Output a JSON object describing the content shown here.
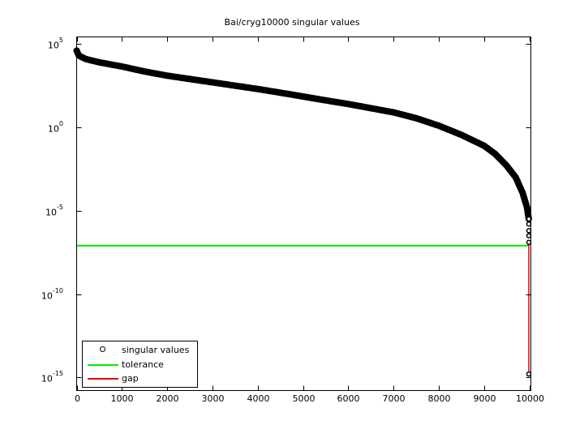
{
  "figure": {
    "title": "Bai/cryg10000 singular values"
  },
  "axes": {
    "y_ticks": [
      {
        "base": "10",
        "exp": "5",
        "value": 5
      },
      {
        "base": "10",
        "exp": "0",
        "value": 0
      },
      {
        "base": "10",
        "exp": "-5",
        "value": -5
      },
      {
        "base": "10",
        "exp": "-10",
        "value": -10
      },
      {
        "base": "10",
        "exp": "-15",
        "value": -15
      }
    ],
    "x_ticks": [
      "0",
      "1000",
      "2000",
      "3000",
      "4000",
      "5000",
      "6000",
      "7000",
      "8000",
      "9000",
      "10000"
    ]
  },
  "legend": {
    "items": [
      {
        "label": "singular values",
        "type": "marker",
        "color": "#000000"
      },
      {
        "label": "tolerance",
        "type": "line",
        "color": "#00ff00"
      },
      {
        "label": "gap",
        "type": "line",
        "color": "#ff0000"
      }
    ]
  },
  "colors": {
    "singular_values": "#000000",
    "tolerance": "#00ee00",
    "gap": "#dd0000",
    "axes": "#000000",
    "background": "#ffffff"
  },
  "chart_data": {
    "type": "scatter",
    "title": "Bai/cryg10000 singular values",
    "xlabel": "",
    "ylabel": "",
    "xlim": [
      0,
      10000
    ],
    "ylim_log10": [
      -15.5,
      5.5
    ],
    "yscale": "log",
    "grid": false,
    "legend_position": "lower left",
    "series": [
      {
        "name": "singular values",
        "marker": "o",
        "color": "#000000",
        "x": [
          1,
          50,
          200,
          500,
          1000,
          1500,
          2000,
          2500,
          3000,
          3500,
          4000,
          4500,
          5000,
          5500,
          6000,
          6500,
          7000,
          7500,
          8000,
          8500,
          9000,
          9250,
          9500,
          9700,
          9850,
          9950,
          9990,
          9995,
          9996,
          9997,
          9998,
          10000
        ],
        "log10_y": [
          4.6,
          4.3,
          4.1,
          3.9,
          3.65,
          3.35,
          3.1,
          2.9,
          2.7,
          2.5,
          2.3,
          2.08,
          1.85,
          1.62,
          1.4,
          1.15,
          0.9,
          0.55,
          0.1,
          -0.45,
          -1.1,
          -1.6,
          -2.3,
          -3.0,
          -3.9,
          -4.8,
          -5.5,
          -5.8,
          -6.2,
          -6.5,
          -6.9,
          -14.8
        ]
      },
      {
        "name": "tolerance",
        "type": "line",
        "color": "#00ff00",
        "x": [
          0,
          10000
        ],
        "log10_y": [
          -7.1,
          -7.1
        ]
      },
      {
        "name": "gap",
        "type": "line",
        "color": "#ff0000",
        "x": [
          9999,
          10000
        ],
        "log10_y": [
          -6.9,
          -14.8
        ]
      }
    ]
  }
}
